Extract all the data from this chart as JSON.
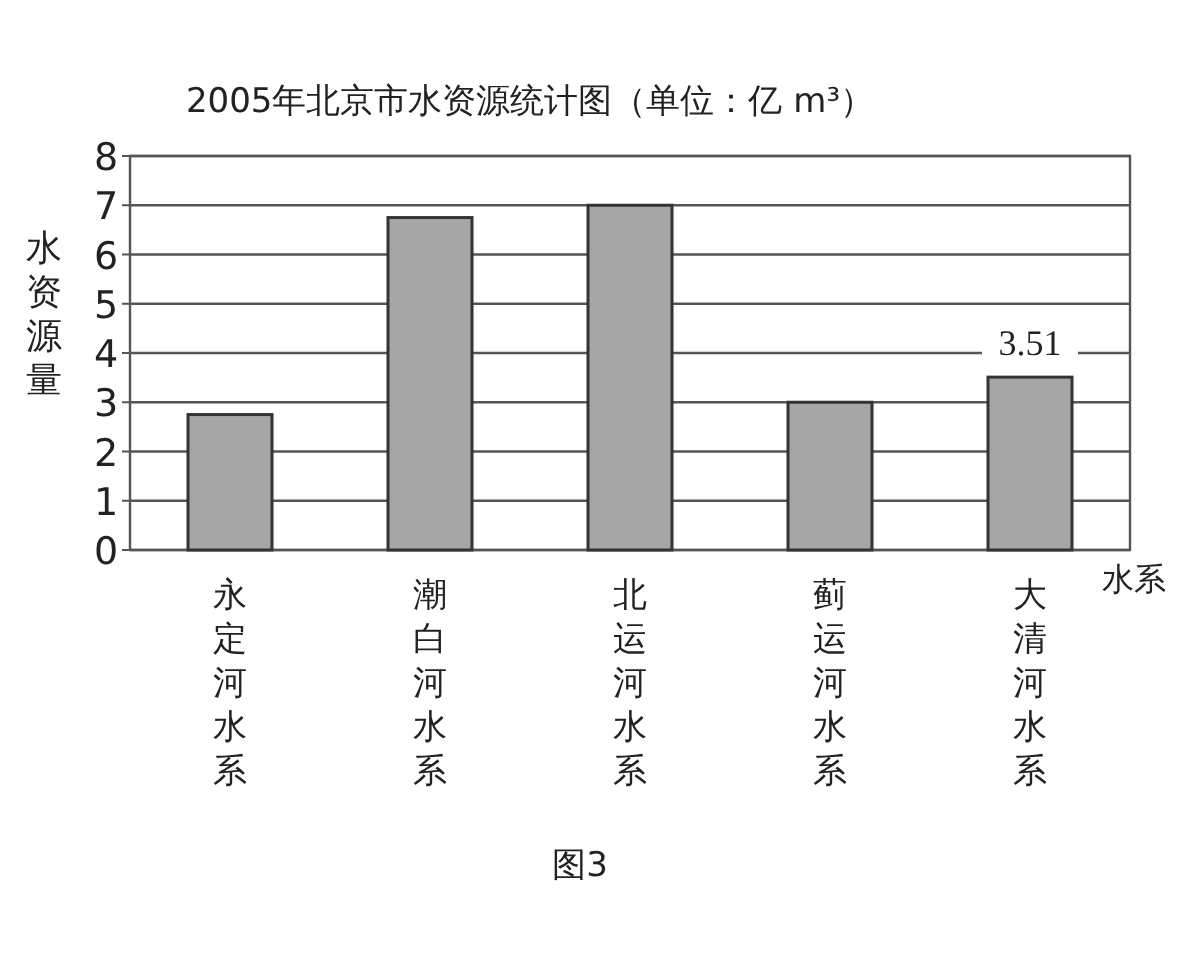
{
  "chart_data": {
    "type": "bar",
    "title": "2005年北京市水资源统计图（单位：亿 m³）",
    "xlabel": "水系",
    "ylabel": "水资源量",
    "categories": [
      "永定河水系",
      "潮白河水系",
      "北运河水系",
      "蓟运河水系",
      "大清河水系"
    ],
    "values": [
      2.75,
      6.75,
      7.0,
      3.0,
      3.51
    ],
    "value_labels": [
      null,
      null,
      null,
      null,
      "3.51"
    ],
    "color": "#a6a6a6",
    "ylim": [
      0,
      8
    ],
    "yticks": [
      0,
      1,
      2,
      3,
      4,
      5,
      6,
      7,
      8
    ],
    "grid": "y",
    "annotations": [
      "图3"
    ]
  }
}
